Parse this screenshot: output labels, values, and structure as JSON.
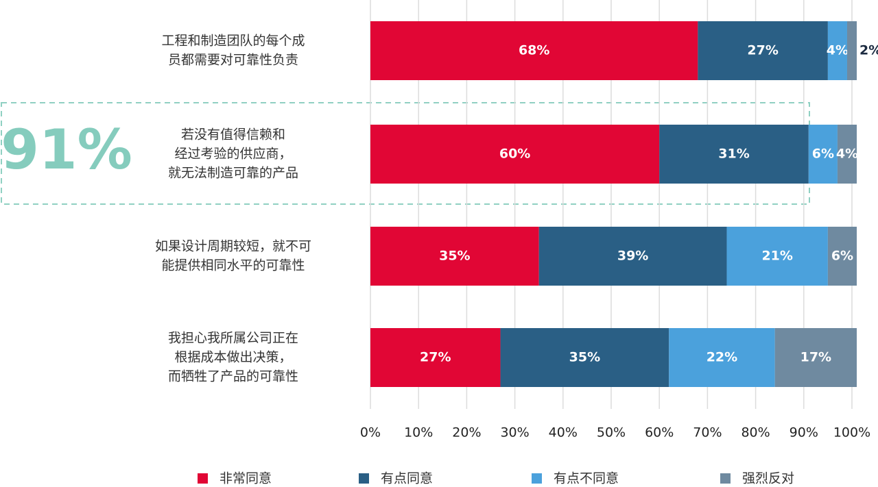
{
  "chart_data": {
    "type": "stacked-bar-horizontal",
    "categories": [
      [
        "工程和制造团队的每个成",
        "员都需要对可靠性负责"
      ],
      [
        "若没有值得信赖和",
        "经过考验的供应商，",
        "就无法制造可靠的产品"
      ],
      [
        "如果设计周期较短，就不可",
        "能提供相同水平的可靠性"
      ],
      [
        "我担心我所属公司正在",
        "根据成本做出决策，",
        "而牺牲了产品的可靠性"
      ]
    ],
    "series": [
      {
        "name": "非常同意",
        "color": "#e10635",
        "values": [
          68,
          60,
          35,
          27
        ],
        "value_labels": [
          "68%",
          "60%",
          "35%",
          "27%"
        ]
      },
      {
        "name": "有点同意",
        "color": "#2a5f85",
        "values": [
          27,
          31,
          39,
          35
        ],
        "value_labels": [
          "27%",
          "31%",
          "39%",
          "35%"
        ]
      },
      {
        "name": "有点不同意",
        "color": "#4ba1dc",
        "values": [
          4,
          6,
          21,
          22
        ],
        "value_labels": [
          "4%",
          "6%",
          "21%",
          "22%"
        ]
      },
      {
        "name": "强烈反对",
        "color": "#6f8aa0",
        "values": [
          2,
          4,
          6,
          17
        ],
        "value_labels": [
          "2%",
          "4%",
          "6%",
          "17%"
        ]
      }
    ],
    "xlim": [
      0,
      100
    ],
    "xticks": [
      {
        "value": 0,
        "label": "0%"
      },
      {
        "value": 10,
        "label": "10%"
      },
      {
        "value": 20,
        "label": "20%"
      },
      {
        "value": 30,
        "label": "30%"
      },
      {
        "value": 40,
        "label": "40%"
      },
      {
        "value": 50,
        "label": "50%"
      },
      {
        "value": 60,
        "label": "60%"
      },
      {
        "value": 70,
        "label": "70%"
      },
      {
        "value": 80,
        "label": "80%"
      },
      {
        "value": 90,
        "label": "90%"
      },
      {
        "value": 100,
        "label": "100%"
      }
    ],
    "grid": true,
    "annotation": "91%"
  }
}
